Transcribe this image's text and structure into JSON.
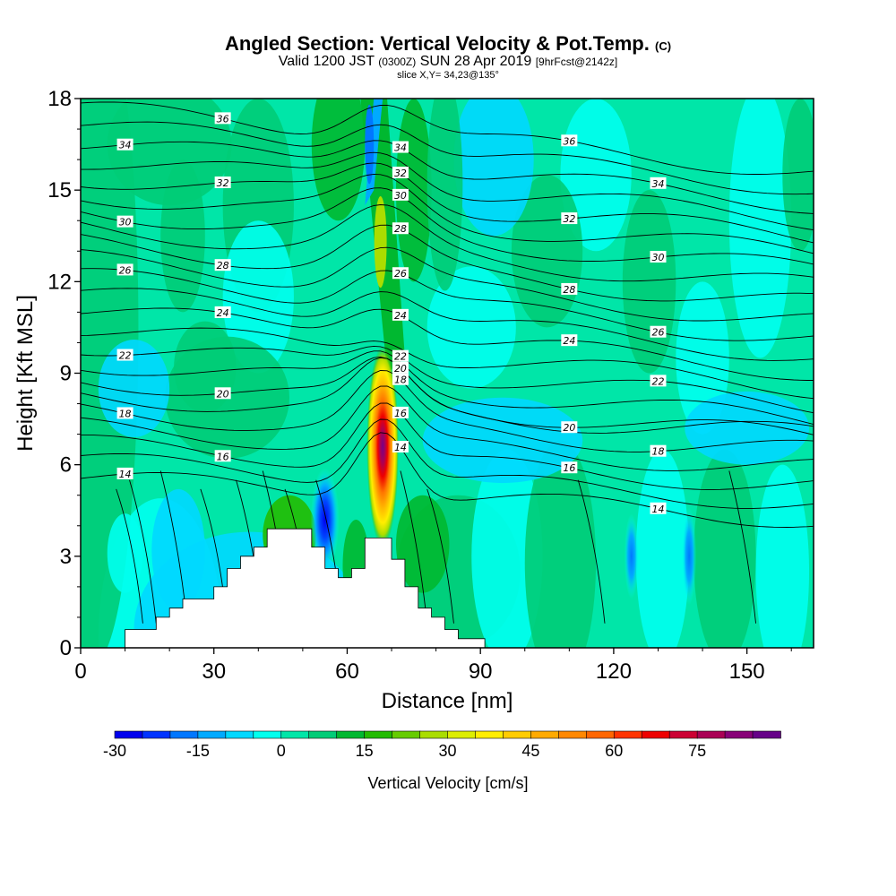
{
  "header": {
    "title": "Angled Section: Vertical Velocity & Pot.Temp.",
    "title_units": "(C)",
    "valid_prefix": "Valid 1200 JST",
    "valid_utc": "(0300Z)",
    "valid_date": "SUN 28 Apr 2019",
    "forecast": "[9hrFcst@2142z]",
    "slice": "slice X,Y= 34,23@135°"
  },
  "chart_data": {
    "type": "heatmap",
    "xlabel": "Distance [nm]",
    "ylabel": "Height [Kft MSL]",
    "xlim": [
      0,
      165
    ],
    "ylim": [
      0,
      18
    ],
    "x_ticks": [
      0,
      30,
      60,
      90,
      120,
      150
    ],
    "y_ticks": [
      0,
      3,
      6,
      9,
      12,
      15,
      18
    ],
    "field": "Vertical Velocity [cm/s]",
    "background_value_range": [
      0,
      5
    ],
    "features": [
      {
        "kind": "updraft",
        "x": 68,
        "y_bottom": 3.5,
        "y_top": 9.5,
        "peak": 75
      },
      {
        "kind": "updraft_plume",
        "x_bottom": 70,
        "x_top": 66,
        "y_bottom": 9,
        "y_top": 18,
        "value": 15
      },
      {
        "kind": "downdraft",
        "x": 55,
        "y_bottom": 3,
        "y_top": 5.5,
        "peak": -30
      },
      {
        "kind": "downdraft_plume",
        "x": 66,
        "y_bottom": 14,
        "y_top": 18,
        "value": -15
      },
      {
        "kind": "downdraft",
        "x": 124,
        "y_bottom": 2,
        "y_top": 4,
        "value": -15
      },
      {
        "kind": "downdraft",
        "x": 137,
        "y_bottom": 2,
        "y_top": 4.5,
        "value": -15
      }
    ],
    "terrain_profile": [
      [
        10,
        0
      ],
      [
        10,
        0.6
      ],
      [
        17,
        0.6
      ],
      [
        17,
        1.0
      ],
      [
        20,
        1.0
      ],
      [
        20,
        1.3
      ],
      [
        23,
        1.3
      ],
      [
        23,
        1.6
      ],
      [
        30,
        1.6
      ],
      [
        30,
        2.0
      ],
      [
        33,
        2.0
      ],
      [
        33,
        2.6
      ],
      [
        36,
        2.6
      ],
      [
        36,
        3.0
      ],
      [
        39,
        3.0
      ],
      [
        39,
        3.3
      ],
      [
        42,
        3.3
      ],
      [
        42,
        3.9
      ],
      [
        52,
        3.9
      ],
      [
        52,
        3.3
      ],
      [
        55,
        3.3
      ],
      [
        55,
        2.6
      ],
      [
        58,
        2.6
      ],
      [
        58,
        2.3
      ],
      [
        61,
        2.3
      ],
      [
        61,
        2.6
      ],
      [
        64,
        2.6
      ],
      [
        64,
        3.6
      ],
      [
        70,
        3.6
      ],
      [
        70,
        2.9
      ],
      [
        73,
        2.9
      ],
      [
        73,
        2.0
      ],
      [
        76,
        2.0
      ],
      [
        76,
        1.3
      ],
      [
        79,
        1.3
      ],
      [
        79,
        1.0
      ],
      [
        82,
        1.0
      ],
      [
        82,
        0.6
      ],
      [
        85,
        0.6
      ],
      [
        85,
        0.3
      ],
      [
        91,
        0.3
      ],
      [
        91,
        0
      ]
    ],
    "contours": {
      "label": "Pot.Temp. (C)",
      "values": [
        14,
        15,
        16,
        17,
        18,
        19,
        20,
        21,
        22,
        23,
        24,
        25,
        26,
        27,
        28,
        29,
        30,
        31,
        32,
        33,
        34,
        35,
        36
      ],
      "labeled": [
        14,
        16,
        18,
        20,
        22,
        24,
        26,
        28,
        30,
        32,
        34,
        36
      ]
    },
    "colorbar": {
      "label": "Vertical Velocity [cm/s]",
      "min": -30,
      "max": 90,
      "step": 5,
      "tick_labels": [
        -30,
        -15,
        0,
        15,
        30,
        45,
        60,
        75
      ],
      "colors": [
        "#0000ee",
        "#0033ff",
        "#0077ff",
        "#00aaff",
        "#00d8ff",
        "#00ffee",
        "#00e6a8",
        "#00cc77",
        "#00b830",
        "#22bb00",
        "#66cc00",
        "#aadd00",
        "#ddee00",
        "#ffee00",
        "#ffcc00",
        "#ffaa00",
        "#ff8800",
        "#ff6600",
        "#ff3300",
        "#ee0000",
        "#cc0033",
        "#aa0055",
        "#880077",
        "#660088"
      ]
    }
  }
}
